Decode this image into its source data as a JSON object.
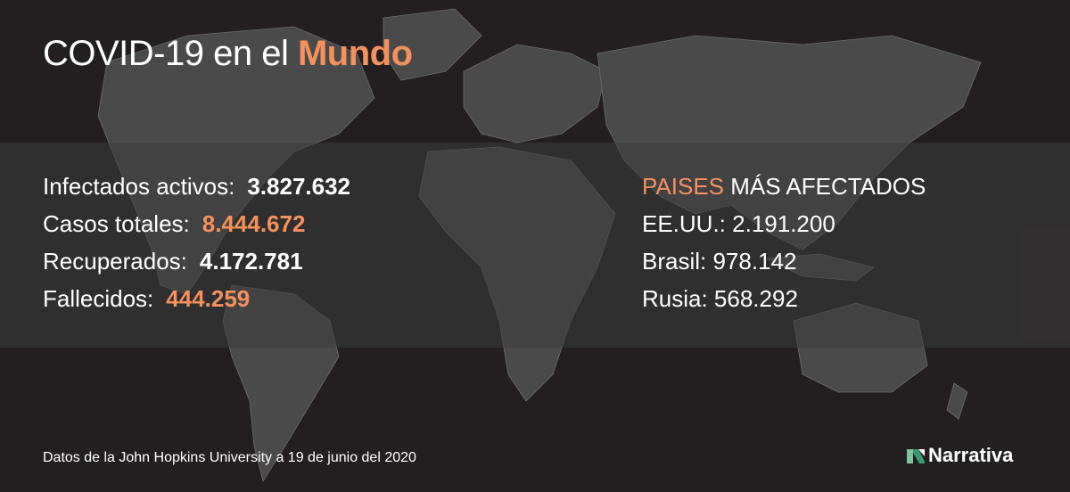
{
  "title": {
    "prefix": "COVID-19 en el",
    "highlight": "Mundo"
  },
  "stats": [
    {
      "label": "Infectados activos:",
      "value": "3.827.632",
      "color": "#ffffff"
    },
    {
      "label": "Casos totales:",
      "value": "8.444.672",
      "color": "#f4915c"
    },
    {
      "label": "Recuperados:",
      "value": "4.172.781",
      "color": "#ffffff"
    },
    {
      "label": "Fallecidos:",
      "value": "444.259",
      "color": "#f4915c"
    }
  ],
  "countries": {
    "header_highlight": "PAISES",
    "header_rest": "MÁS AFECTADOS",
    "rows": [
      "EE.UU.: 2.191.200",
      "Brasil: 978.142",
      "Rusia: 568.292"
    ]
  },
  "source": "Datos de la John Hopkins University a 19 de junio del 2020",
  "brand": {
    "name": "Narrativa",
    "icon": "narrativa-logo-icon"
  },
  "colors": {
    "background": "#231f20",
    "accent": "#f4915c",
    "land": "#4a4a4a"
  }
}
